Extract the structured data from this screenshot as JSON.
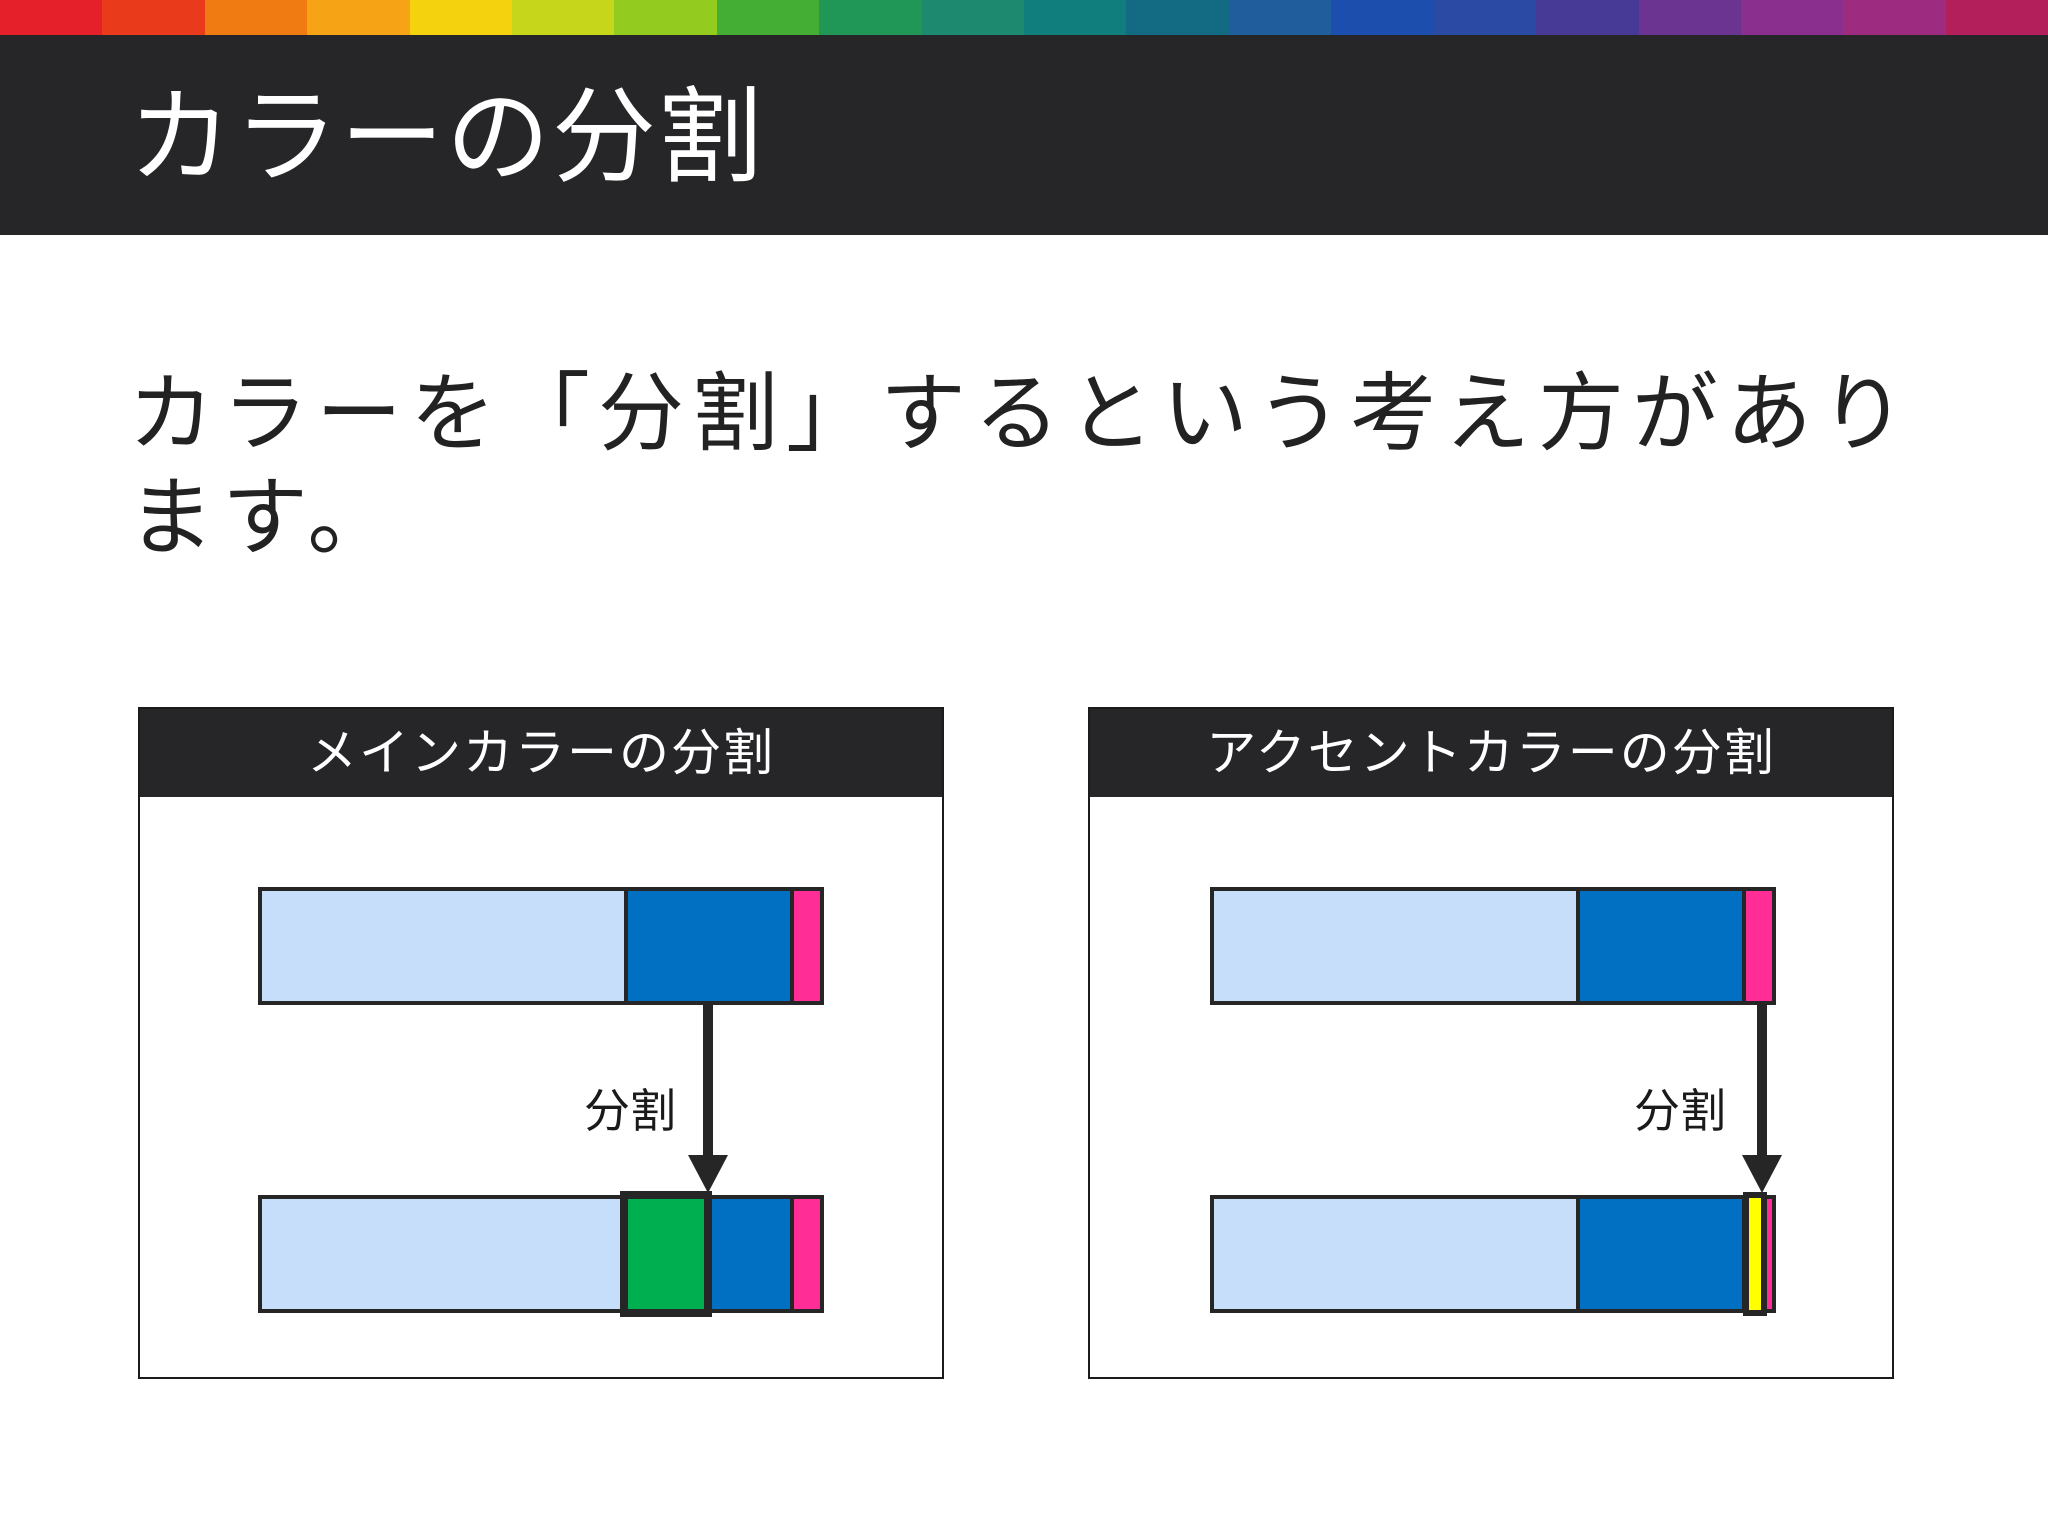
{
  "slide": {
    "title": "カラーの分割",
    "body": "カラーを「分割」するという考え方があります。"
  },
  "rainbow_colors": [
    "#e5202a",
    "#ea3a1c",
    "#f07b12",
    "#f6a415",
    "#f4d30e",
    "#c6d61b",
    "#94cb1f",
    "#43ad34",
    "#219757",
    "#1d8a6f",
    "#107e7c",
    "#126b83",
    "#1f5d9d",
    "#1c4fad",
    "#2b4aa4",
    "#463a96",
    "#6b3490",
    "#8a2f8d",
    "#9d2b7f",
    "#b21f5b"
  ],
  "colors": {
    "light_blue": "#c7defb",
    "main_blue": "#016fc2",
    "accent_pink": "#ff2d95",
    "split_green": "#00b050",
    "split_yellow": "#ffff00",
    "outline": "#262626"
  },
  "panels": [
    {
      "title": "メインカラーの分割",
      "split_label": "分割"
    },
    {
      "title": "アクセントカラーの分割",
      "split_label": "分割"
    }
  ]
}
